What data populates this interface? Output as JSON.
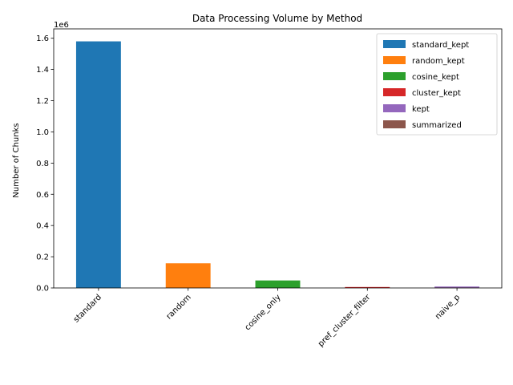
{
  "chart_data": {
    "type": "bar",
    "title": "Data Processing Volume by Method",
    "xlabel": "",
    "ylabel": "Number of Chunks",
    "y_offset_label": "1e6",
    "ylim": [
      0,
      1.66
    ],
    "y_ticks": [
      0.0,
      0.2,
      0.4,
      0.6,
      0.8,
      1.0,
      1.2,
      1.4,
      1.6
    ],
    "y_tick_labels": [
      "0.0",
      "0.2",
      "0.4",
      "0.6",
      "0.8",
      "1.0",
      "1.2",
      "1.4",
      "1.6"
    ],
    "categories": [
      "standard",
      "random",
      "cosine_only",
      "pref_cluster_filter",
      "naive_p"
    ],
    "series": [
      {
        "name": "standard_kept",
        "color": "#1f77b4",
        "values": [
          1.58,
          0,
          0,
          0,
          0
        ]
      },
      {
        "name": "random_kept",
        "color": "#ff7f0e",
        "values": [
          0,
          0.158,
          0,
          0,
          0
        ]
      },
      {
        "name": "cosine_kept",
        "color": "#2ca02c",
        "values": [
          0,
          0,
          0.048,
          0,
          0
        ]
      },
      {
        "name": "cluster_kept",
        "color": "#d62728",
        "values": [
          0,
          0,
          0,
          0.006,
          0
        ]
      },
      {
        "name": "kept",
        "color": "#9467bd",
        "values": [
          0,
          0,
          0,
          0,
          0.009
        ]
      },
      {
        "name": "summarized",
        "color": "#8c564b",
        "values": [
          0,
          0,
          0,
          0,
          0.002
        ]
      }
    ],
    "legend_position": "top-right",
    "grid": false
  }
}
